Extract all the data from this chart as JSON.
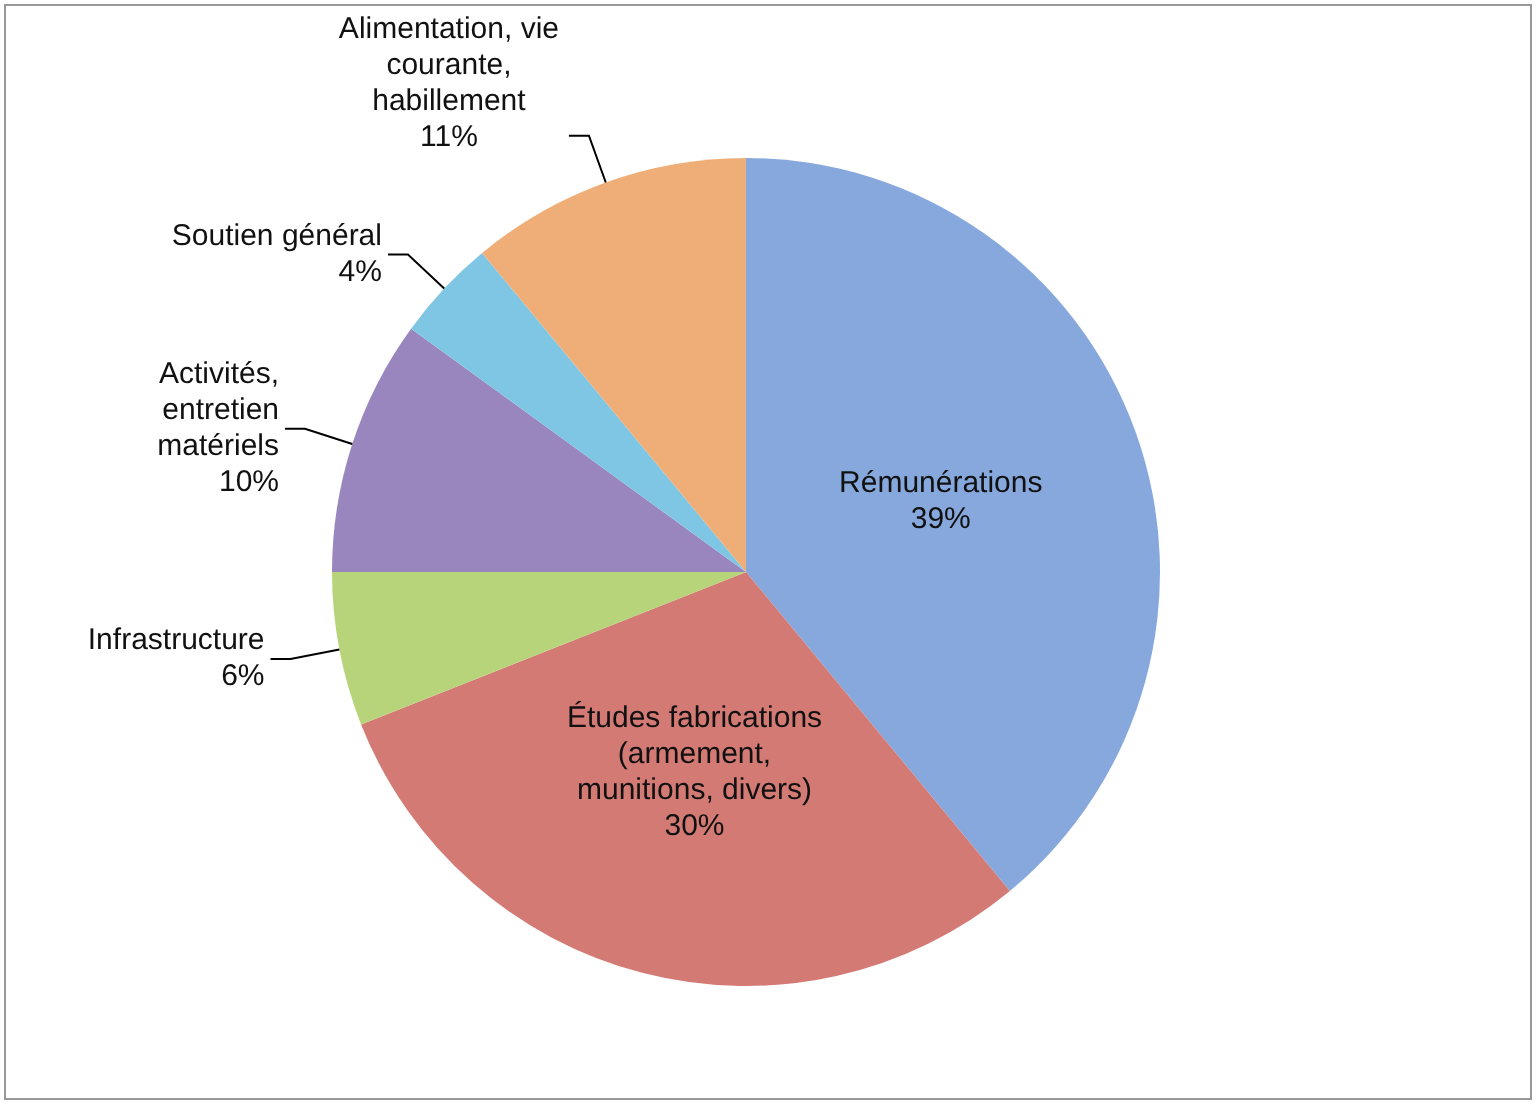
{
  "chart_data": {
    "type": "pie",
    "categories": [
      "Rémunérations",
      "Études fabrications (armement, munitions, divers)",
      "Infrastructure",
      "Activités, entretien matériels",
      "Soutien général",
      "Alimentation, vie courante, habillement"
    ],
    "values": [
      39,
      30,
      6,
      10,
      4,
      11
    ],
    "colors": [
      "#86a8dc",
      "#d47a74",
      "#b7d47a",
      "#9a86be",
      "#7ec6e4",
      "#efae78"
    ],
    "value_labels": [
      "39%",
      "30%",
      "6%",
      "10%",
      "4%",
      "11%"
    ],
    "legend": false
  }
}
